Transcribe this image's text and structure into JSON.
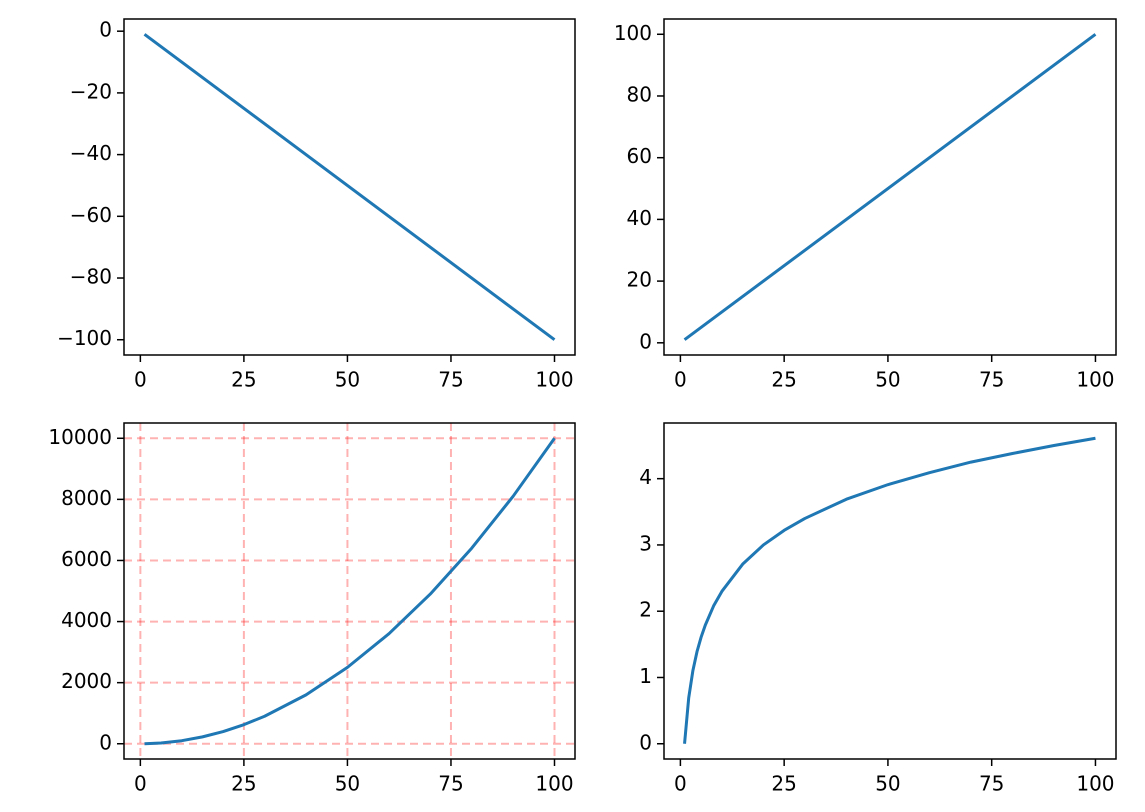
{
  "chart_data": [
    {
      "type": "line",
      "x": [
        1,
        100
      ],
      "series": [
        {
          "color": "#1f77b4",
          "values": [
            -1,
            -100
          ]
        }
      ],
      "xlim": [
        -3.95,
        104.95
      ],
      "ylim": [
        -104.95,
        3.95
      ],
      "xticks": [
        0,
        25,
        50,
        75,
        100
      ],
      "yticks": [
        0,
        {
          "value": -20,
          "label": "−20"
        },
        {
          "value": -40,
          "label": "−40"
        },
        {
          "value": -60,
          "label": "−60"
        },
        {
          "value": -80,
          "label": "−80"
        },
        {
          "value": -100,
          "label": "−100"
        }
      ],
      "grid": false
    },
    {
      "type": "line",
      "x": [
        1,
        100
      ],
      "series": [
        {
          "color": "#1f77b4",
          "values": [
            1,
            100
          ]
        }
      ],
      "xlim": [
        -3.95,
        104.95
      ],
      "ylim": [
        -3.95,
        104.95
      ],
      "xticks": [
        0,
        25,
        50,
        75,
        100
      ],
      "yticks": [
        0,
        20,
        40,
        60,
        80,
        100
      ],
      "grid": false
    },
    {
      "type": "line",
      "x": [
        1,
        5,
        10,
        15,
        20,
        25,
        30,
        40,
        50,
        60,
        70,
        80,
        90,
        100
      ],
      "series": [
        {
          "color": "#1f77b4",
          "values": [
            1,
            25,
            100,
            225,
            400,
            625,
            900,
            1600,
            2500,
            3600,
            4900,
            6400,
            8100,
            10000
          ]
        }
      ],
      "xlim": [
        -3.95,
        104.95
      ],
      "ylim": [
        -498.95,
        10499.95
      ],
      "xticks": [
        0,
        25,
        50,
        75,
        100
      ],
      "yticks": [
        0,
        2000,
        4000,
        6000,
        8000,
        10000
      ],
      "grid": true,
      "grid_color": "#ff0000",
      "grid_style": "dashed"
    },
    {
      "type": "line",
      "x": [
        1,
        2,
        3,
        4,
        5,
        6,
        8,
        10,
        15,
        20,
        25,
        30,
        40,
        50,
        60,
        70,
        80,
        90,
        100
      ],
      "series": [
        {
          "color": "#1f77b4",
          "values": [
            0,
            0.69,
            1.1,
            1.39,
            1.61,
            1.79,
            2.08,
            2.3,
            2.71,
            3.0,
            3.22,
            3.4,
            3.69,
            3.91,
            4.09,
            4.25,
            4.38,
            4.5,
            4.61
          ]
        }
      ],
      "xlim": [
        -3.95,
        104.95
      ],
      "ylim": [
        -0.23,
        4.84
      ],
      "xticks": [
        0,
        25,
        50,
        75,
        100
      ],
      "yticks": [
        0,
        1,
        2,
        3,
        4
      ],
      "grid": false
    }
  ]
}
